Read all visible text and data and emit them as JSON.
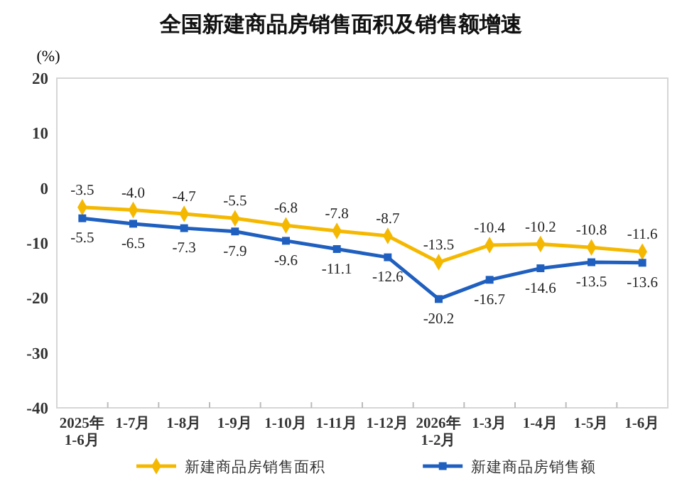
{
  "chart_data": {
    "type": "line",
    "title": "全国新建商品房销售面积及销售额增速",
    "ylabel": "(%)",
    "categories": [
      "2025年\n1-6月",
      "1-7月",
      "1-8月",
      "1-9月",
      "1-10月",
      "1-11月",
      "1-12月",
      "2026年\n1-2月",
      "1-3月",
      "1-4月",
      "1-5月",
      "1-6月"
    ],
    "series": [
      {
        "name": "新建商品房销售面积",
        "color": "#f5b800",
        "marker": "diamond",
        "values": [
          -3.5,
          -4.0,
          -4.7,
          -5.5,
          -6.8,
          -7.8,
          -8.7,
          -13.5,
          -10.4,
          -10.2,
          -10.8,
          -11.6
        ],
        "value_labels": [
          "-3.5",
          "-4.0",
          "-4.7",
          "-5.5",
          "-6.8",
          "-7.8",
          "-8.7",
          "-13.5",
          "-10.4",
          "-10.2",
          "-10.8",
          "-11.6"
        ]
      },
      {
        "name": "新建商品房销售额",
        "color": "#1f5fbf",
        "marker": "square",
        "values": [
          -5.5,
          -6.5,
          -7.3,
          -7.9,
          -9.6,
          -11.1,
          -12.6,
          -20.2,
          -16.7,
          -14.6,
          -13.5,
          -13.6
        ],
        "value_labels": [
          "-5.5",
          "-6.5",
          "-7.3",
          "-7.9",
          "-9.6",
          "-11.1",
          "-12.6",
          "-20.2",
          "-16.7",
          "-14.6",
          "-13.5",
          "-13.6"
        ]
      }
    ],
    "ylim": [
      -40,
      20
    ],
    "yticks": [
      -40,
      -30,
      -20,
      -10,
      0,
      10,
      20
    ],
    "grid": false,
    "legend": "bottom",
    "line_style": "solid"
  }
}
